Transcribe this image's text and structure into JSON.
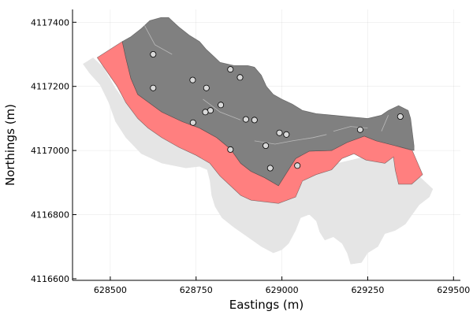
{
  "chart_data": {
    "type": "scatter",
    "title": "",
    "xlabel": "Eastings (m)",
    "ylabel": "Northings (m)",
    "xlim": [
      628390,
      629520
    ],
    "ylim": [
      4116595,
      4117440
    ],
    "xticks": [
      628500,
      628750,
      629000,
      629250,
      629500
    ],
    "yticks": [
      4116600,
      4116800,
      4117000,
      4117200,
      4117400
    ],
    "grid": true,
    "legend": "none",
    "colors": {
      "background_region": "#e5e5e5",
      "edge_band": "#ff7f7f",
      "interior_region": "#808080",
      "interior_lines": "#c8c8c8",
      "points_fill": "#d9d9d9",
      "points_stroke": "#000000"
    },
    "regions": [
      {
        "role": "background",
        "points": [
          [
            628420,
            4117270
          ],
          [
            628450,
            4117290
          ],
          [
            628480,
            4117260
          ],
          [
            628515,
            4117195
          ],
          [
            628545,
            4117150
          ],
          [
            628585,
            4117120
          ],
          [
            628620,
            4117085
          ],
          [
            628650,
            4117065
          ],
          [
            628690,
            4117050
          ],
          [
            628740,
            4117035
          ],
          [
            628790,
            4117010
          ],
          [
            628830,
            4116985
          ],
          [
            628852,
            4116960
          ],
          [
            628875,
            4116925
          ],
          [
            628900,
            4116890
          ],
          [
            628925,
            4116862
          ],
          [
            628960,
            4116842
          ],
          [
            629010,
            4116852
          ],
          [
            629040,
            4116870
          ],
          [
            629065,
            4116910
          ],
          [
            629100,
            4116945
          ],
          [
            629160,
            4116960
          ],
          [
            629220,
            4116975
          ],
          [
            629275,
            4116990
          ],
          [
            629340,
            4116985
          ],
          [
            629385,
            4116935
          ],
          [
            629418,
            4116902
          ],
          [
            629440,
            4116880
          ],
          [
            629430,
            4116855
          ],
          [
            629400,
            4116830
          ],
          [
            629380,
            4116800
          ],
          [
            629360,
            4116770
          ],
          [
            629330,
            4116750
          ],
          [
            629300,
            4116740
          ],
          [
            629280,
            4116700
          ],
          [
            629250,
            4116680
          ],
          [
            629232,
            4116650
          ],
          [
            629200,
            4116645
          ],
          [
            629190,
            4116680
          ],
          [
            629175,
            4116710
          ],
          [
            629150,
            4116730
          ],
          [
            629125,
            4116720
          ],
          [
            629110,
            4116745
          ],
          [
            629100,
            4116780
          ],
          [
            629080,
            4116800
          ],
          [
            629055,
            4116790
          ],
          [
            629040,
            4116750
          ],
          [
            629020,
            4116710
          ],
          [
            629000,
            4116690
          ],
          [
            628975,
            4116680
          ],
          [
            628940,
            4116700
          ],
          [
            628900,
            4116730
          ],
          [
            628860,
            4116760
          ],
          [
            628825,
            4116790
          ],
          [
            628805,
            4116825
          ],
          [
            628795,
            4116860
          ],
          [
            628790,
            4116905
          ],
          [
            628782,
            4116940
          ],
          [
            628760,
            4116950
          ],
          [
            628720,
            4116945
          ],
          [
            628650,
            4116960
          ],
          [
            628590,
            4116990
          ],
          [
            628545,
            4117040
          ],
          [
            628515,
            4117090
          ],
          [
            628495,
            4117150
          ],
          [
            628470,
            4117205
          ],
          [
            628440,
            4117240
          ]
        ]
      },
      {
        "role": "edge-band",
        "points": [
          [
            628462,
            4117290
          ],
          [
            628535,
            4117340
          ],
          [
            628545,
            4117290
          ],
          [
            628560,
            4117225
          ],
          [
            628580,
            4117175
          ],
          [
            628650,
            4117120
          ],
          [
            628710,
            4117090
          ],
          [
            628760,
            4117070
          ],
          [
            628810,
            4117040
          ],
          [
            628850,
            4117005
          ],
          [
            628880,
            4116960
          ],
          [
            628910,
            4116935
          ],
          [
            628950,
            4116915
          ],
          [
            628990,
            4116890
          ],
          [
            629040,
            4116975
          ],
          [
            629080,
            4116998
          ],
          [
            629145,
            4117000
          ],
          [
            629190,
            4117025
          ],
          [
            629240,
            4117045
          ],
          [
            629275,
            4117030
          ],
          [
            629330,
            4117015
          ],
          [
            629380,
            4117000
          ],
          [
            629410,
            4116925
          ],
          [
            629378,
            4116895
          ],
          [
            629340,
            4116895
          ],
          [
            629330,
            4116940
          ],
          [
            629325,
            4116980
          ],
          [
            629300,
            4116960
          ],
          [
            629245,
            4116970
          ],
          [
            629210,
            4116990
          ],
          [
            629175,
            4116975
          ],
          [
            629145,
            4116940
          ],
          [
            629100,
            4116925
          ],
          [
            629060,
            4116905
          ],
          [
            629040,
            4116855
          ],
          [
            628990,
            4116835
          ],
          [
            628950,
            4116840
          ],
          [
            628910,
            4116845
          ],
          [
            628880,
            4116860
          ],
          [
            628850,
            4116890
          ],
          [
            628820,
            4116920
          ],
          [
            628790,
            4116960
          ],
          [
            628750,
            4116985
          ],
          [
            628700,
            4117010
          ],
          [
            628650,
            4117040
          ],
          [
            628610,
            4117070
          ],
          [
            628580,
            4117100
          ],
          [
            628545,
            4117150
          ],
          [
            628520,
            4117200
          ]
        ]
      },
      {
        "role": "interior",
        "points": [
          [
            628535,
            4117340
          ],
          [
            628560,
            4117355
          ],
          [
            628590,
            4117380
          ],
          [
            628615,
            4117405
          ],
          [
            628648,
            4117415
          ],
          [
            628670,
            4117415
          ],
          [
            628685,
            4117400
          ],
          [
            628700,
            4117385
          ],
          [
            628730,
            4117360
          ],
          [
            628760,
            4117340
          ],
          [
            628780,
            4117315
          ],
          [
            628800,
            4117295
          ],
          [
            628820,
            4117275
          ],
          [
            628840,
            4117270
          ],
          [
            628860,
            4117265
          ],
          [
            628900,
            4117265
          ],
          [
            628920,
            4117260
          ],
          [
            628940,
            4117235
          ],
          [
            628955,
            4117200
          ],
          [
            628975,
            4117175
          ],
          [
            629000,
            4117160
          ],
          [
            629030,
            4117145
          ],
          [
            629060,
            4117125
          ],
          [
            629100,
            4117115
          ],
          [
            629150,
            4117110
          ],
          [
            629200,
            4117105
          ],
          [
            629250,
            4117100
          ],
          [
            629290,
            4117110
          ],
          [
            629310,
            4117125
          ],
          [
            629340,
            4117140
          ],
          [
            629368,
            4117125
          ],
          [
            629375,
            4117100
          ],
          [
            629385,
            4117015
          ],
          [
            629385,
            4117000
          ],
          [
            629330,
            4117015
          ],
          [
            629275,
            4117030
          ],
          [
            629240,
            4117045
          ],
          [
            629190,
            4117025
          ],
          [
            629145,
            4117000
          ],
          [
            629080,
            4116998
          ],
          [
            629040,
            4116975
          ],
          [
            628990,
            4116890
          ],
          [
            628950,
            4116915
          ],
          [
            628910,
            4116935
          ],
          [
            628880,
            4116960
          ],
          [
            628850,
            4117005
          ],
          [
            628810,
            4117040
          ],
          [
            628760,
            4117070
          ],
          [
            628710,
            4117090
          ],
          [
            628650,
            4117120
          ],
          [
            628580,
            4117175
          ],
          [
            628560,
            4117225
          ],
          [
            628545,
            4117290
          ]
        ]
      }
    ],
    "interior_lines": [
      [
        [
          628600,
          4117390
        ],
        [
          628630,
          4117330
        ],
        [
          628680,
          4117300
        ]
      ],
      [
        [
          628770,
          4117160
        ],
        [
          628820,
          4117120
        ],
        [
          628880,
          4117095
        ]
      ],
      [
        [
          628920,
          4117030
        ],
        [
          628980,
          4117020
        ],
        [
          629030,
          4117030
        ],
        [
          629090,
          4117040
        ],
        [
          629130,
          4117050
        ]
      ],
      [
        [
          629150,
          4117060
        ],
        [
          629200,
          4117075
        ],
        [
          629250,
          4117070
        ]
      ],
      [
        [
          629290,
          4117060
        ],
        [
          629310,
          4117110
        ]
      ]
    ],
    "points": [
      [
        628625,
        4117300
      ],
      [
        628625,
        4117195
      ],
      [
        628740,
        4117220
      ],
      [
        628780,
        4117195
      ],
      [
        628850,
        4117253
      ],
      [
        628878,
        4117228
      ],
      [
        628822,
        4117142
      ],
      [
        628792,
        4117125
      ],
      [
        628777,
        4117120
      ],
      [
        628741,
        4117087
      ],
      [
        628895,
        4117097
      ],
      [
        628920,
        4117095
      ],
      [
        628993,
        4117055
      ],
      [
        629013,
        4117050
      ],
      [
        628953,
        4117015
      ],
      [
        628850,
        4117003
      ],
      [
        629228,
        4117065
      ],
      [
        629345,
        4117106
      ],
      [
        628966,
        4116945
      ],
      [
        629045,
        4116953
      ]
    ]
  }
}
